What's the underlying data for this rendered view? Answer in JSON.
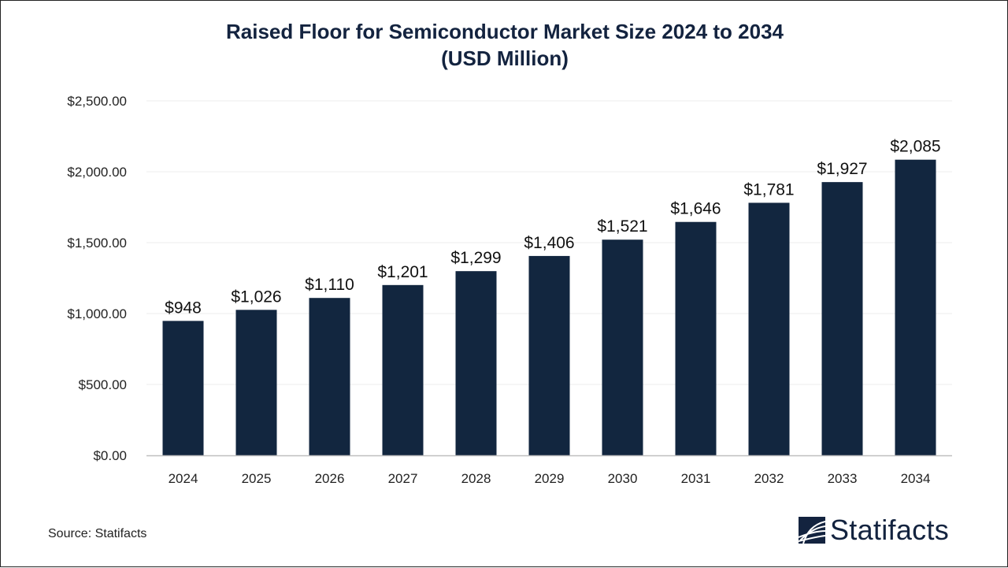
{
  "chart_data": {
    "type": "bar",
    "title": "Raised Floor for Semiconductor Market Size 2024 to 2034",
    "subtitle": "(USD Million)",
    "categories": [
      "2024",
      "2025",
      "2026",
      "2027",
      "2028",
      "2029",
      "2030",
      "2031",
      "2032",
      "2033",
      "2034"
    ],
    "values": [
      948,
      1026,
      1110,
      1201,
      1299,
      1406,
      1521,
      1646,
      1781,
      1927,
      2085
    ],
    "data_labels": [
      "$948",
      "$1,026",
      "$1,110",
      "$1,201",
      "$1,299",
      "$1,406",
      "$1,521",
      "$1,646",
      "$1,781",
      "$1,927",
      "$2,085"
    ],
    "yticks": [
      0,
      500,
      1000,
      1500,
      2000,
      2500
    ],
    "ytick_labels": [
      "$0.00",
      "$500.00",
      "$1,000.00",
      "$1,500.00",
      "$2,000.00",
      "$2,500.00"
    ],
    "ylim": [
      0,
      2500
    ],
    "grid": true,
    "bar_color": "#12263f",
    "xlabel": "",
    "ylabel": ""
  },
  "source": "Source: Statifacts",
  "logo": {
    "text": "Statifacts",
    "color": "#13233f"
  }
}
